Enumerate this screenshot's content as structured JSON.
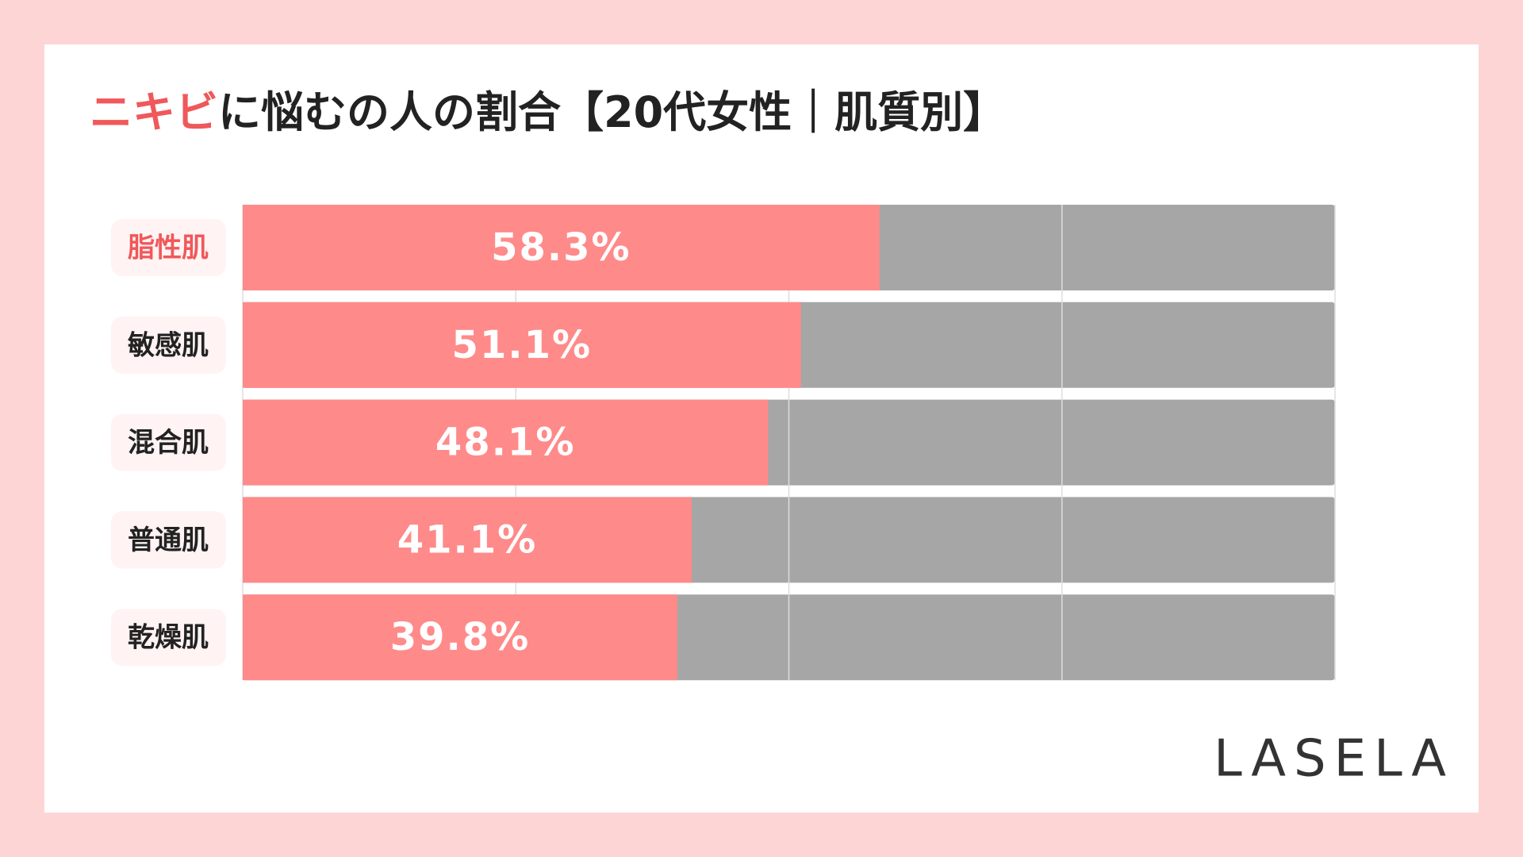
{
  "chart_data": {
    "type": "bar",
    "orientation": "horizontal",
    "title": [
      "ニキビ",
      "に悩むの人の割合【20代女性｜肌質別】"
    ],
    "title_colors": [
      "#f0585a",
      "#222222"
    ],
    "categories": [
      "脂性肌",
      "敏感肌",
      "混合肌",
      "普通肌",
      "乾燥肌"
    ],
    "label_colors": [
      "#f0585a",
      "#222222",
      "#222222",
      "#222222",
      "#222222"
    ],
    "values": [
      58.3,
      51.1,
      48.1,
      41.1,
      39.8
    ],
    "value_labels": [
      "58.3%",
      "51.1%",
      "48.1%",
      "41.1%",
      "39.8%"
    ],
    "color": "#ff8a8a",
    "track_color": "#a6a6a6",
    "xlim": [
      0,
      100
    ],
    "xticks": [
      0,
      25,
      50,
      75,
      100
    ],
    "grid": true,
    "logo": "LASELA"
  }
}
